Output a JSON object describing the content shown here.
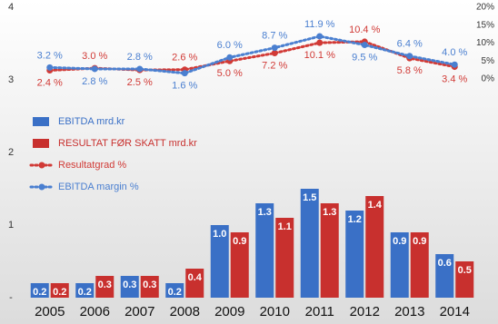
{
  "chart_data": {
    "type": "bar",
    "categories": [
      "2005",
      "2006",
      "2007",
      "2008",
      "2009",
      "2010",
      "2011",
      "2012",
      "2013",
      "2014"
    ],
    "ylim": [
      0,
      4
    ],
    "yticks": [
      {
        "value": 0,
        "label": "-"
      },
      1,
      2,
      3,
      4
    ],
    "y2lim": [
      0,
      20
    ],
    "y2ticks": [
      {
        "value": 0,
        "label": "0%"
      },
      {
        "value": 5,
        "label": "5%"
      },
      {
        "value": 10,
        "label": "10%"
      },
      {
        "value": 15,
        "label": "15%"
      },
      {
        "value": 20,
        "label": "20%"
      }
    ],
    "legend": "upper left",
    "series": [
      {
        "name": "EBITDA mrd.kr",
        "type": "bar",
        "color": "#3a70c6",
        "values": [
          0.2,
          0.2,
          0.3,
          0.2,
          1.0,
          1.3,
          1.5,
          1.2,
          0.9,
          0.6
        ],
        "value_labels": [
          "0.2",
          "0.2",
          "0.3",
          "0.2",
          "1.0",
          "1.3",
          "1.5",
          "1.2",
          "0.9",
          "0.6"
        ]
      },
      {
        "name": "RESULTAT FØR SKATT mrd.kr",
        "type": "bar",
        "color": "#c8302e",
        "values": [
          0.2,
          0.3,
          0.3,
          0.4,
          0.9,
          1.1,
          1.3,
          1.4,
          0.9,
          0.5
        ],
        "value_labels": [
          "0.2",
          "0.3",
          "0.3",
          "0.4",
          "0.9",
          "1.1",
          "1.3",
          "1.4",
          "0.9",
          "0.5"
        ]
      },
      {
        "name": "Resultatgrad %",
        "type": "line",
        "axis": "y2",
        "color": "#d13a36",
        "values": [
          2.4,
          3.0,
          2.5,
          2.6,
          5.0,
          7.2,
          10.1,
          10.4,
          5.8,
          3.4
        ],
        "value_labels": [
          "2.4 %",
          "3.0 %",
          "2.5 %",
          "2.6 %",
          "5.0 %",
          "7.2 %",
          "10.1 %",
          "10.4 %",
          "5.8 %",
          "3.4 %"
        ]
      },
      {
        "name": "EBITDA margin %",
        "type": "line",
        "axis": "y2",
        "color": "#4a7fd0",
        "values": [
          3.2,
          2.8,
          2.8,
          1.6,
          6.0,
          8.7,
          11.9,
          9.5,
          6.4,
          4.0
        ],
        "value_labels": [
          "3.2 %",
          "2.8 %",
          "2.8 %",
          "1.6 %",
          "6.0 %",
          "8.7 %",
          "11.9 %",
          "9.5 %",
          "6.4 %",
          "4.0 %"
        ]
      }
    ]
  }
}
